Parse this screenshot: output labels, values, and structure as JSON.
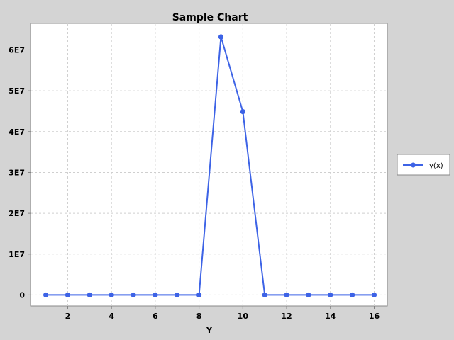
{
  "chart_data": {
    "type": "line",
    "title": "Sample Chart",
    "xlabel": "Y",
    "ylabel": "",
    "xlim": [
      0.3,
      16.6
    ],
    "ylim": [
      -2700000,
      66500000
    ],
    "x_ticks": [
      2,
      4,
      6,
      8,
      10,
      12,
      14,
      16
    ],
    "y_ticks": [
      0,
      10000000,
      20000000,
      30000000,
      40000000,
      50000000,
      60000000
    ],
    "y_tick_labels": [
      "0",
      "1E7",
      "2E7",
      "3E7",
      "4E7",
      "5E7",
      "6E7"
    ],
    "grid": true,
    "legend": "right",
    "series": [
      {
        "name": "y(x)",
        "color": "#3d63e6",
        "x": [
          1,
          2,
          3,
          4,
          5,
          6,
          7,
          8,
          9,
          10,
          11,
          12,
          13,
          14,
          15,
          16
        ],
        "y": [
          0,
          0,
          0,
          0,
          0,
          0,
          0,
          0,
          63200000,
          44900000,
          0,
          0,
          0,
          0,
          0,
          0
        ]
      }
    ]
  }
}
